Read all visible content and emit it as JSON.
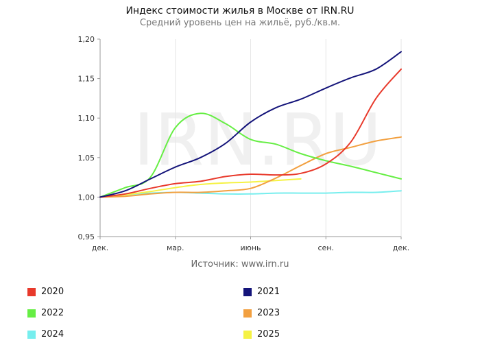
{
  "header": {
    "title": "Индекс стоимости жилья в Москве от IRN.RU",
    "subtitle": "Средний уровень цен на жильё, руб./кв.м."
  },
  "source": "Источник: www.irn.ru",
  "watermark": "IRN.RU",
  "colors": {
    "2020": "#e8392b",
    "2021": "#14147a",
    "2022": "#66ee44",
    "2023": "#f2a040",
    "2024": "#77eeee",
    "2025": "#f5f244"
  },
  "chart_data": {
    "type": "line",
    "xlabel": "",
    "ylabel": "",
    "x_tick_labels": [
      "дек.",
      "мар.",
      "июнь",
      "сен.",
      "дек."
    ],
    "x_tick_positions": [
      0,
      3,
      6,
      9,
      12
    ],
    "xlim": [
      0,
      12
    ],
    "ylim": [
      0.95,
      1.2
    ],
    "y_ticks": [
      "0,95",
      "1,00",
      "1,05",
      "1,10",
      "1,15",
      "1,20"
    ],
    "grid": "vertical",
    "legend_position": "bottom",
    "series": [
      {
        "name": "2020",
        "x": [
          0,
          1,
          2,
          3,
          4,
          5,
          6,
          7,
          8,
          9,
          10,
          11,
          12
        ],
        "values": [
          1.0,
          1.004,
          1.011,
          1.017,
          1.02,
          1.026,
          1.029,
          1.028,
          1.03,
          1.042,
          1.07,
          1.125,
          1.162
        ]
      },
      {
        "name": "2021",
        "x": [
          0,
          1,
          2,
          3,
          4,
          5,
          6,
          7,
          8,
          9,
          10,
          11,
          12
        ],
        "values": [
          1.0,
          1.008,
          1.023,
          1.038,
          1.05,
          1.068,
          1.095,
          1.113,
          1.124,
          1.138,
          1.151,
          1.162,
          1.184
        ]
      },
      {
        "name": "2022",
        "x": [
          0,
          1,
          2,
          3,
          4,
          5,
          6,
          7,
          8,
          9,
          10,
          11,
          12
        ],
        "values": [
          1.0,
          1.012,
          1.025,
          1.088,
          1.106,
          1.093,
          1.073,
          1.067,
          1.055,
          1.046,
          1.039,
          1.031,
          1.023
        ]
      },
      {
        "name": "2023",
        "x": [
          0,
          1,
          2,
          3,
          4,
          5,
          6,
          7,
          8,
          9,
          10,
          11,
          12
        ],
        "values": [
          1.0,
          1.001,
          1.004,
          1.006,
          1.006,
          1.008,
          1.011,
          1.024,
          1.04,
          1.055,
          1.063,
          1.071,
          1.076
        ]
      },
      {
        "name": "2024",
        "x": [
          0,
          1,
          2,
          3,
          4,
          5,
          6,
          7,
          8,
          9,
          10,
          11,
          12
        ],
        "values": [
          1.0,
          1.003,
          1.005,
          1.006,
          1.005,
          1.004,
          1.004,
          1.005,
          1.005,
          1.005,
          1.006,
          1.006,
          1.008
        ]
      },
      {
        "name": "2025",
        "x": [
          0,
          1,
          2,
          3,
          4,
          5,
          6,
          7,
          8
        ],
        "values": [
          1.0,
          1.003,
          1.007,
          1.012,
          1.016,
          1.018,
          1.019,
          1.021,
          1.023
        ]
      }
    ]
  },
  "legend": [
    {
      "label": "2020",
      "color_key": "2020"
    },
    {
      "label": "2021",
      "color_key": "2021"
    },
    {
      "label": "2022",
      "color_key": "2022"
    },
    {
      "label": "2023",
      "color_key": "2023"
    },
    {
      "label": "2024",
      "color_key": "2024"
    },
    {
      "label": "2025",
      "color_key": "2025"
    }
  ]
}
